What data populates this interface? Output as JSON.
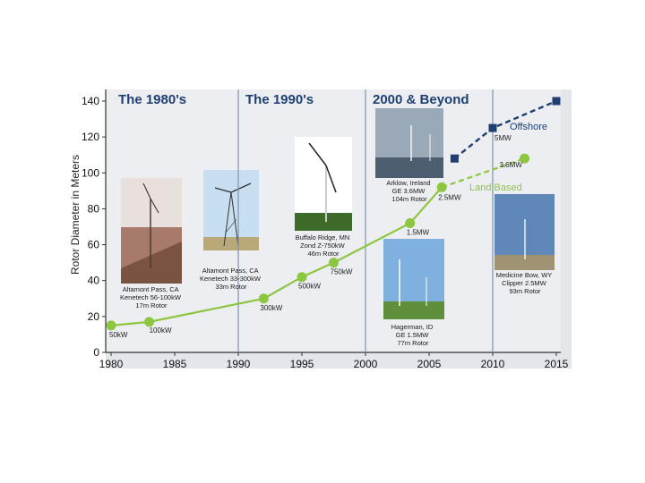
{
  "chart_data": {
    "type": "line",
    "ylabel": "Rotor Diameter in Meters",
    "xlabel": "",
    "xlim": [
      1980,
      2015
    ],
    "ylim": [
      0,
      140
    ],
    "x_ticks": [
      "1980",
      "1985",
      "1990",
      "1995",
      "2000",
      "2005",
      "2010",
      "2015"
    ],
    "y_ticks": [
      "0",
      "20",
      "40",
      "60",
      "80",
      "100",
      "120",
      "140"
    ],
    "eras": [
      {
        "label": "The 1980's",
        "start": 1980,
        "end": 1990
      },
      {
        "label": "The 1990's",
        "start": 1990,
        "end": 2000
      },
      {
        "label": "2000 & Beyond",
        "start": 2000,
        "end": 2015
      }
    ],
    "series": [
      {
        "name": "Land Based",
        "color": "#8dc63f",
        "marker": "circle",
        "points": [
          {
            "x": 1980.0,
            "y": 15,
            "label": "50kW"
          },
          {
            "x": 1983.0,
            "y": 17,
            "label": "100kW"
          },
          {
            "x": 1992.0,
            "y": 30,
            "label": "300kW"
          },
          {
            "x": 1995.0,
            "y": 42,
            "label": "500kW"
          },
          {
            "x": 1997.5,
            "y": 50,
            "label": "750kW"
          },
          {
            "x": 2003.5,
            "y": 72,
            "label": "1.5MW"
          },
          {
            "x": 2006.0,
            "y": 92,
            "label": "2.5MW"
          },
          {
            "x": 2012.5,
            "y": 108,
            "label": "3.6MW"
          }
        ],
        "projected_from_index": 6
      },
      {
        "name": "Offshore",
        "color": "#1f3f73",
        "marker": "square",
        "points": [
          {
            "x": 2007.0,
            "y": 108,
            "label": ""
          },
          {
            "x": 2010.0,
            "y": 125,
            "label": "5MW"
          },
          {
            "x": 2015.0,
            "y": 140,
            "label": ""
          }
        ]
      }
    ],
    "photo_captions": [
      {
        "lines": [
          "Altamont Pass, CA",
          "Kenetech 56-100kW",
          "17m Rotor"
        ]
      },
      {
        "lines": [
          "Altamont Pass, CA",
          "Kenetech 33-300kW",
          "33m Rotor"
        ]
      },
      {
        "lines": [
          "Buffalo Ridge, MN",
          "Zond Z-750kW",
          "46m Rotor"
        ]
      },
      {
        "lines": [
          "Arklow, Ireland",
          "GE 3.6MW",
          "104m Rotor"
        ]
      },
      {
        "lines": [
          "Hagerman, ID",
          "GE 1.5MW",
          "77m Rotor"
        ]
      },
      {
        "lines": [
          "Medicine Bow, WY",
          "Clipper 2.5MW",
          "93m Rotor"
        ]
      }
    ]
  }
}
